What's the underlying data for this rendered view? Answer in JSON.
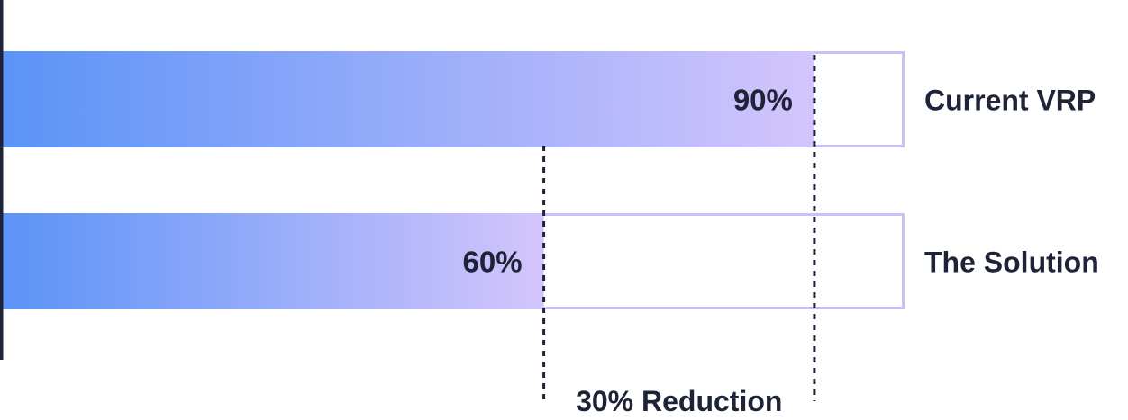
{
  "chart_data": {
    "type": "bar",
    "orientation": "horizontal",
    "categories": [
      "Current VRP",
      "The Solution"
    ],
    "values": [
      90,
      60
    ],
    "value_labels": [
      "90%",
      "60%"
    ],
    "xlim": [
      0,
      100
    ],
    "annotation": "30% Reduction",
    "grid": false,
    "colors": {
      "gradient_start": "#5b93f7",
      "gradient_end": "#d4c5fc",
      "outline": "#c9c1f6",
      "axis": "#1f2337",
      "text": "#1f2337"
    }
  }
}
